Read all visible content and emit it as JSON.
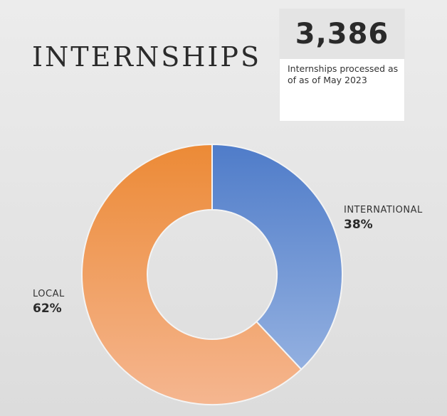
{
  "page": {
    "title": "INTERNSHIPS"
  },
  "stat": {
    "value": "3,386",
    "caption": "Internships processed as of as of May 2023"
  },
  "chart_data": {
    "type": "pie",
    "variant": "donut",
    "slices": [
      {
        "name": "INTERNATIONAL",
        "value": 38,
        "label": "38%",
        "color_start": "#4f7cc9",
        "color_end": "#93b0e0"
      },
      {
        "name": "LOCAL",
        "value": 62,
        "label": "62%",
        "color_start": "#ec8a36",
        "color_end": "#f5b690"
      }
    ],
    "start": "12 o'clock",
    "direction": "clockwise",
    "legend": "none"
  }
}
